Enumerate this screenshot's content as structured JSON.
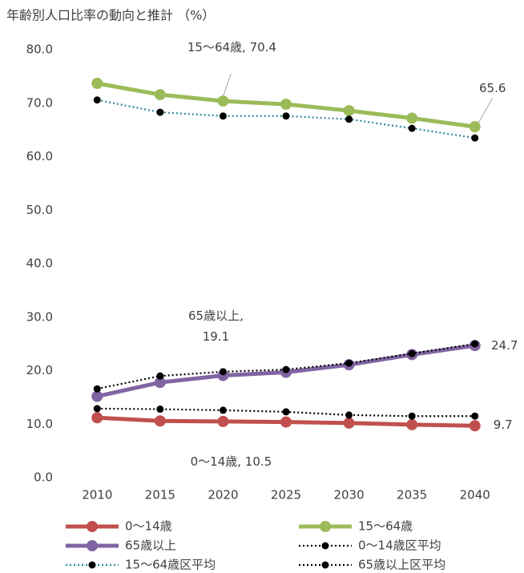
{
  "chart_data": {
    "type": "line",
    "title": "年齢別人口比率の動向と推計 （%）",
    "categories": [
      "2010",
      "2015",
      "2020",
      "2025",
      "2030",
      "2035",
      "2040"
    ],
    "series": [
      {
        "name": "0〜14歳",
        "color": "#c0504d",
        "dash": "solid",
        "marker_color": "#c0504d",
        "values": [
          11.2,
          10.6,
          10.5,
          10.4,
          10.2,
          9.9,
          9.7
        ],
        "value_labels": [
          null,
          null,
          "0〜14歳, 10.5",
          null,
          null,
          null,
          "9.7"
        ]
      },
      {
        "name": "15〜64歳",
        "color": "#9bbb59",
        "dash": "solid",
        "marker_color": "#9bbb59",
        "values": [
          73.7,
          71.6,
          70.4,
          69.8,
          68.6,
          67.2,
          65.6
        ],
        "value_labels": [
          null,
          null,
          "15〜64歳, 70.4",
          null,
          null,
          null,
          "65.6"
        ]
      },
      {
        "name": "65歳以上",
        "color": "#8064a2",
        "dash": "solid",
        "marker_color": "#8064a2",
        "values": [
          15.2,
          17.8,
          19.1,
          19.7,
          21.1,
          23.0,
          24.7
        ],
        "value_labels": [
          null,
          null,
          "65歳以上,\n19.1",
          null,
          null,
          null,
          "24.7"
        ]
      },
      {
        "name": "0〜14歳区平均",
        "color": "#000000",
        "dash": "dotted",
        "marker_color": "#000000",
        "values": [
          12.9,
          12.8,
          12.6,
          12.3,
          11.7,
          11.5,
          11.5
        ]
      },
      {
        "name": "15〜64歳区平均",
        "color": "#31859c",
        "dash": "dotted",
        "marker_color": "#000000",
        "values": [
          70.6,
          68.3,
          67.6,
          67.6,
          67.0,
          65.3,
          63.5
        ]
      },
      {
        "name": "65歳以上区平均",
        "color": "#000000",
        "dash": "dotted",
        "marker_color": "#000000",
        "values": [
          16.6,
          19.0,
          19.8,
          20.2,
          21.4,
          23.2,
          25.0
        ]
      }
    ],
    "ylim": [
      0,
      80
    ],
    "yticks": [
      {
        "value": 0,
        "label": "0.0"
      },
      {
        "value": 10,
        "label": "10.0"
      },
      {
        "value": 20,
        "label": "20.0"
      },
      {
        "value": 30,
        "label": "30.0"
      },
      {
        "value": 40,
        "label": "40.0"
      },
      {
        "value": 50,
        "label": "50.0"
      },
      {
        "value": 60,
        "label": "60.0"
      },
      {
        "value": 70,
        "label": "70.0"
      },
      {
        "value": 80,
        "label": "80.0"
      }
    ]
  }
}
